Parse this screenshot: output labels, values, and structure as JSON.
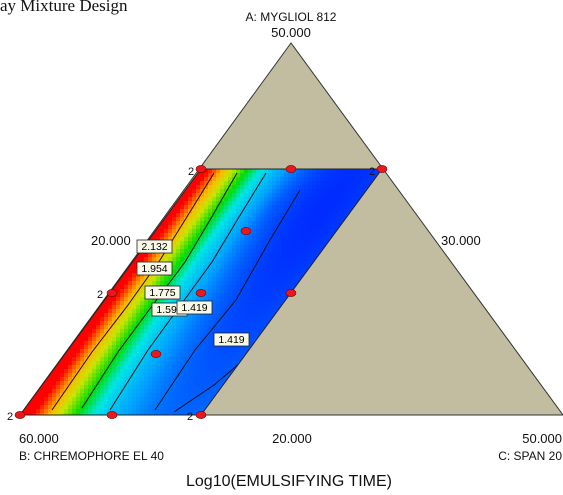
{
  "header_text": "ay Mixture Design",
  "chart_data": {
    "type": "ternary-contour",
    "response": "Log10(EMULSIFYING TIME)",
    "components": [
      {
        "id": "A",
        "label": "A: MYGLIOL 812",
        "max_value": "50.000"
      },
      {
        "id": "B",
        "label": "B: CHREMOPHORE EL 40",
        "max_value": "60.000"
      },
      {
        "id": "C",
        "label": "C: SPAN 20",
        "max_value": "50.000"
      }
    ],
    "edge_tick_labels": [
      "20.000",
      "30.000",
      "20.000"
    ],
    "contours": [
      {
        "value": 2.132,
        "label": "2.132"
      },
      {
        "value": 1.954,
        "label": "1.954"
      },
      {
        "value": 1.775,
        "label": "1.775"
      },
      {
        "value": 1.597,
        "label": "1.597"
      },
      {
        "value": 1.419,
        "label": "1.419"
      },
      {
        "value": 1.419,
        "label": "1.419"
      }
    ],
    "design_point_replicate_labels": [
      "2",
      "2",
      "2",
      "2",
      "2"
    ],
    "colors": {
      "high": "#ff0000",
      "mid": "#00dd00",
      "low": "#0000ff",
      "constraint_region_fill": "#c2bda0",
      "design_point": "#e8181c"
    }
  }
}
